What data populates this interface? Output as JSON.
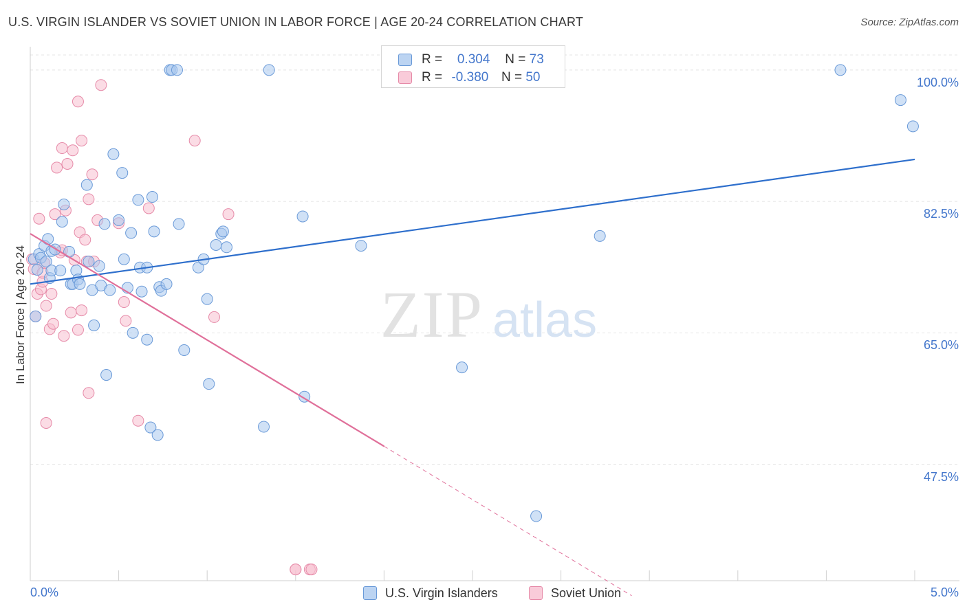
{
  "header": {
    "title": "U.S. VIRGIN ISLANDER VS SOVIET UNION IN LABOR FORCE | AGE 20-24 CORRELATION CHART",
    "source": "Source: ZipAtlas.com"
  },
  "watermark": {
    "zip": "ZIP",
    "atlas": "atlas"
  },
  "legend_top": {
    "rows": [
      {
        "r_label": "R =",
        "r_value": "0.304",
        "n_label": "N =",
        "n_value": "73"
      },
      {
        "r_label": "R =",
        "r_value": "-0.380",
        "n_label": "N =",
        "n_value": "50"
      }
    ]
  },
  "chart_data": {
    "type": "scatter",
    "title": "U.S. VIRGIN ISLANDER VS SOVIET UNION IN LABOR FORCE | AGE 20-24 CORRELATION CHART",
    "xlabel": "",
    "ylabel": "In Labor Force | Age 20-24",
    "xlim": [
      0,
      5
    ],
    "ylim": [
      32,
      102
    ],
    "x_tick_labels": {
      "left": "0.0%",
      "right": "5.0%"
    },
    "y_ticks": [
      {
        "value": 100,
        "label": "100.0%"
      },
      {
        "value": 82.5,
        "label": "82.5%"
      },
      {
        "value": 65,
        "label": "65.0%"
      },
      {
        "value": 47.5,
        "label": "47.5%"
      }
    ],
    "grid": true,
    "legend_position": "bottom-center",
    "colors": {
      "blue_fill": "#aac8ee",
      "blue_stroke": "#6a9ad8",
      "blue_line": "#2e6fcc",
      "pink_fill": "#f7bfd0",
      "pink_stroke": "#e68aa8",
      "pink_line": "#e0709a",
      "tick_label": "#4477cc"
    },
    "series": [
      {
        "name": "U.S. Virgin Islanders",
        "color": "blue",
        "points": [
          [
            0.02,
            74.8
          ],
          [
            0.03,
            67.2
          ],
          [
            0.04,
            73.4
          ],
          [
            0.05,
            75.5
          ],
          [
            0.06,
            75.0
          ],
          [
            0.08,
            76.6
          ],
          [
            0.09,
            74.5
          ],
          [
            0.1,
            77.5
          ],
          [
            0.11,
            72.3
          ],
          [
            0.12,
            75.9
          ],
          [
            0.12,
            73.3
          ],
          [
            0.14,
            76.1
          ],
          [
            0.17,
            73.3
          ],
          [
            0.18,
            79.8
          ],
          [
            0.19,
            82.1
          ],
          [
            0.22,
            75.8
          ],
          [
            0.23,
            71.5
          ],
          [
            0.24,
            71.5
          ],
          [
            0.26,
            73.3
          ],
          [
            0.27,
            72.1
          ],
          [
            0.28,
            71.5
          ],
          [
            0.32,
            84.7
          ],
          [
            0.33,
            74.5
          ],
          [
            0.35,
            70.7
          ],
          [
            0.36,
            66.0
          ],
          [
            0.39,
            73.9
          ],
          [
            0.4,
            71.3
          ],
          [
            0.42,
            79.5
          ],
          [
            0.43,
            59.4
          ],
          [
            0.45,
            70.7
          ],
          [
            0.47,
            88.8
          ],
          [
            0.5,
            80.0
          ],
          [
            0.52,
            86.3
          ],
          [
            0.53,
            74.8
          ],
          [
            0.55,
            71.0
          ],
          [
            0.57,
            78.3
          ],
          [
            0.58,
            65.0
          ],
          [
            0.61,
            82.7
          ],
          [
            0.62,
            73.7
          ],
          [
            0.63,
            70.5
          ],
          [
            0.66,
            73.7
          ],
          [
            0.66,
            64.1
          ],
          [
            0.68,
            52.4
          ],
          [
            0.69,
            83.1
          ],
          [
            0.7,
            78.5
          ],
          [
            0.72,
            51.4
          ],
          [
            0.73,
            71.1
          ],
          [
            0.74,
            70.6
          ],
          [
            0.77,
            71.5
          ],
          [
            0.79,
            100.0
          ],
          [
            0.8,
            100.0
          ],
          [
            0.83,
            100.0
          ],
          [
            0.84,
            79.5
          ],
          [
            0.87,
            62.7
          ],
          [
            0.95,
            73.7
          ],
          [
            0.98,
            74.8
          ],
          [
            1.0,
            69.5
          ],
          [
            1.01,
            58.2
          ],
          [
            1.05,
            76.7
          ],
          [
            1.08,
            78.2
          ],
          [
            1.09,
            78.5
          ],
          [
            1.11,
            76.4
          ],
          [
            1.32,
            52.5
          ],
          [
            1.35,
            100.0
          ],
          [
            1.54,
            80.5
          ],
          [
            1.55,
            56.5
          ],
          [
            1.87,
            76.6
          ],
          [
            2.44,
            60.4
          ],
          [
            2.86,
            40.6
          ],
          [
            3.22,
            77.9
          ],
          [
            4.58,
            100.0
          ],
          [
            4.92,
            96.0
          ],
          [
            4.99,
            92.5
          ]
        ]
      },
      {
        "name": "Soviet Union",
        "color": "pink",
        "points": [
          [
            0.01,
            74.8
          ],
          [
            0.02,
            73.5
          ],
          [
            0.03,
            67.2
          ],
          [
            0.04,
            70.2
          ],
          [
            0.05,
            80.2
          ],
          [
            0.06,
            70.8
          ],
          [
            0.07,
            71.8
          ],
          [
            0.07,
            73.0
          ],
          [
            0.08,
            74.3
          ],
          [
            0.09,
            53.0
          ],
          [
            0.09,
            68.6
          ],
          [
            0.11,
            65.5
          ],
          [
            0.12,
            70.2
          ],
          [
            0.13,
            66.2
          ],
          [
            0.14,
            80.8
          ],
          [
            0.15,
            87.0
          ],
          [
            0.17,
            75.7
          ],
          [
            0.18,
            89.6
          ],
          [
            0.18,
            76.0
          ],
          [
            0.19,
            64.6
          ],
          [
            0.2,
            81.3
          ],
          [
            0.21,
            87.5
          ],
          [
            0.23,
            67.7
          ],
          [
            0.24,
            89.3
          ],
          [
            0.25,
            74.7
          ],
          [
            0.27,
            95.8
          ],
          [
            0.27,
            65.4
          ],
          [
            0.28,
            78.4
          ],
          [
            0.29,
            90.6
          ],
          [
            0.29,
            68.0
          ],
          [
            0.31,
            77.4
          ],
          [
            0.32,
            74.5
          ],
          [
            0.33,
            57.0
          ],
          [
            0.33,
            82.8
          ],
          [
            0.35,
            86.1
          ],
          [
            0.36,
            74.5
          ],
          [
            0.38,
            80.0
          ],
          [
            0.4,
            98.0
          ],
          [
            0.5,
            79.6
          ],
          [
            0.53,
            69.1
          ],
          [
            0.54,
            66.6
          ],
          [
            0.61,
            53.3
          ],
          [
            0.67,
            81.6
          ],
          [
            0.93,
            90.6
          ],
          [
            1.04,
            67.1
          ],
          [
            1.12,
            80.8
          ],
          [
            1.5,
            33.5
          ],
          [
            1.5,
            33.5
          ],
          [
            1.58,
            33.5
          ],
          [
            1.59,
            33.5
          ]
        ]
      }
    ],
    "trend_lines": [
      {
        "series": "U.S. Virgin Islanders",
        "x": [
          0.0,
          5.0
        ],
        "y": [
          71.5,
          88.1
        ],
        "style": "solid"
      },
      {
        "series": "Soviet Union",
        "x": [
          0.0,
          2.0
        ],
        "y": [
          78.2,
          49.9
        ],
        "style": "solid"
      },
      {
        "series": "Soviet Union",
        "x": [
          2.0,
          3.4
        ],
        "y": [
          49.9,
          30.0
        ],
        "style": "dashed"
      }
    ]
  }
}
